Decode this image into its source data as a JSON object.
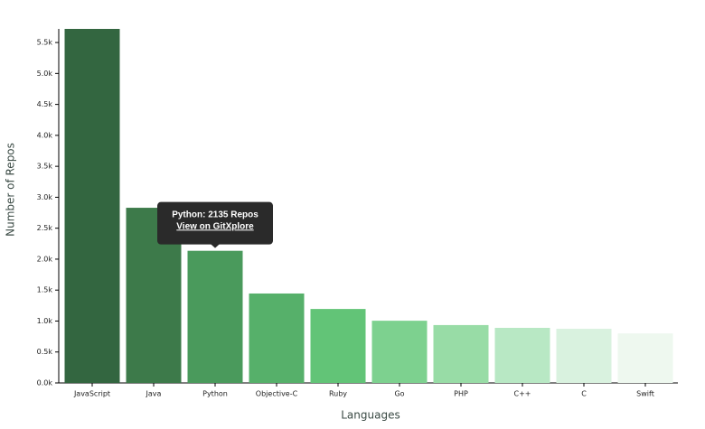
{
  "chart_data": {
    "type": "bar",
    "categories": [
      "JavaScript",
      "Java",
      "Python",
      "Objective-C",
      "Ruby",
      "Go",
      "PHP",
      "C++",
      "C",
      "Swift"
    ],
    "values": [
      5720,
      2830,
      2135,
      1445,
      1195,
      1005,
      935,
      890,
      875,
      800
    ],
    "colors": [
      "#336640",
      "#3d7a4a",
      "#4a9a5c",
      "#56b06a",
      "#62c477",
      "#7dd18f",
      "#98dca6",
      "#b8e8c4",
      "#d9f2df",
      "#eef8ef"
    ],
    "ylim": [
      0,
      5720
    ],
    "yticks": [
      {
        "value": 0,
        "label": "0.0k"
      },
      {
        "value": 500,
        "label": "0.5k"
      },
      {
        "value": 1000,
        "label": "1.0k"
      },
      {
        "value": 1500,
        "label": "1.5k"
      },
      {
        "value": 2000,
        "label": "2.0k"
      },
      {
        "value": 2500,
        "label": "2.5k"
      },
      {
        "value": 3000,
        "label": "3.0k"
      },
      {
        "value": 3500,
        "label": "3.5k"
      },
      {
        "value": 4000,
        "label": "4.0k"
      },
      {
        "value": 4500,
        "label": "4.5k"
      },
      {
        "value": 5000,
        "label": "5.0k"
      },
      {
        "value": 5500,
        "label": "5.5k"
      }
    ],
    "xlabel": "Languages",
    "ylabel": "Number of Repos",
    "tooltip": {
      "text": "Python: 2135 Repos",
      "link": "View on GitXplore"
    }
  }
}
